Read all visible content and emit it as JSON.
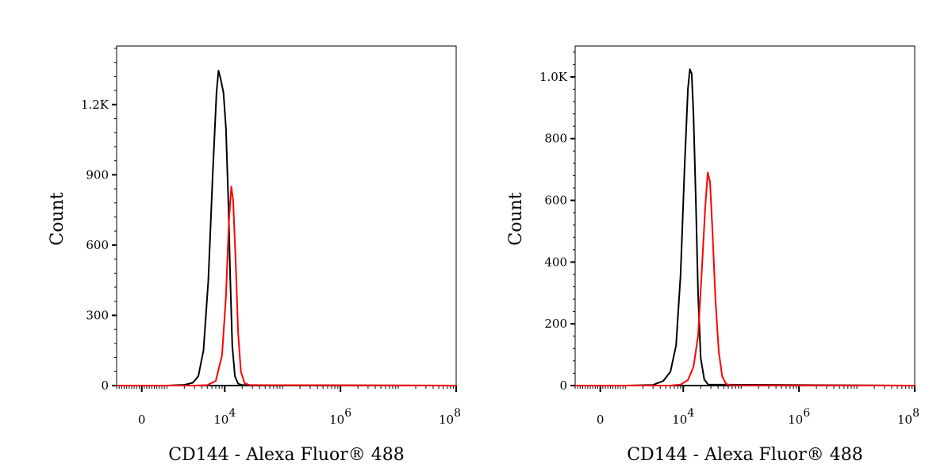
{
  "chart_data": [
    {
      "type": "line",
      "xlabel": "CD144 - Alexa Fluor® 488",
      "ylabel": "Count",
      "x_scale": "biexponential",
      "xlim": [
        -1000,
        100000000
      ],
      "ylim": [
        0,
        1450
      ],
      "x_ticks": [
        {
          "value": 0,
          "base": "0",
          "exp": ""
        },
        {
          "value": 10000,
          "base": "10",
          "exp": "4"
        },
        {
          "value": 1000000,
          "base": "10",
          "exp": "6"
        },
        {
          "value": 100000000,
          "base": "10",
          "exp": "8"
        }
      ],
      "y_ticks": [
        {
          "value": 0,
          "label": "0"
        },
        {
          "value": 300,
          "label": "300"
        },
        {
          "value": 600,
          "label": "600"
        },
        {
          "value": 900,
          "label": "900"
        },
        {
          "value": 1200,
          "label": "1.2K"
        }
      ],
      "grid": false,
      "series": [
        {
          "color": "#000000",
          "points": [
            [
              -1000,
              0
            ],
            [
              1000,
              0
            ],
            [
              2000,
              3
            ],
            [
              2800,
              12
            ],
            [
              3500,
              40
            ],
            [
              4300,
              150
            ],
            [
              5200,
              450
            ],
            [
              6200,
              900
            ],
            [
              7200,
              1250
            ],
            [
              7800,
              1345
            ],
            [
              8500,
              1310
            ],
            [
              9500,
              1250
            ],
            [
              10500,
              1100
            ],
            [
              11500,
              800
            ],
            [
              12500,
              450
            ],
            [
              13500,
              170
            ],
            [
              15000,
              40
            ],
            [
              17000,
              8
            ],
            [
              20000,
              2
            ],
            [
              100000000,
              0
            ]
          ]
        },
        {
          "color": "#ff0000",
          "points": [
            [
              -1000,
              0
            ],
            [
              1000,
              0
            ],
            [
              3000,
              0
            ],
            [
              5000,
              2
            ],
            [
              7000,
              20
            ],
            [
              9000,
              130
            ],
            [
              10500,
              380
            ],
            [
              11800,
              700
            ],
            [
              13000,
              850
            ],
            [
              14000,
              790
            ],
            [
              15500,
              520
            ],
            [
              17000,
              230
            ],
            [
              19000,
              60
            ],
            [
              22000,
              10
            ],
            [
              27000,
              2
            ],
            [
              100000000,
              0
            ]
          ]
        }
      ]
    },
    {
      "type": "line",
      "xlabel": "CD144 - Alexa Fluor® 488",
      "ylabel": "Count",
      "x_scale": "biexponential",
      "xlim": [
        -1000,
        100000000
      ],
      "ylim": [
        0,
        1100
      ],
      "x_ticks": [
        {
          "value": 0,
          "base": "0",
          "exp": ""
        },
        {
          "value": 10000,
          "base": "10",
          "exp": "4"
        },
        {
          "value": 1000000,
          "base": "10",
          "exp": "6"
        },
        {
          "value": 100000000,
          "base": "10",
          "exp": "8"
        }
      ],
      "y_ticks": [
        {
          "value": 0,
          "label": "0"
        },
        {
          "value": 200,
          "label": "200"
        },
        {
          "value": 400,
          "label": "400"
        },
        {
          "value": 600,
          "label": "600"
        },
        {
          "value": 800,
          "label": "800"
        },
        {
          "value": 1000,
          "label": "1.0K"
        }
      ],
      "grid": false,
      "series": [
        {
          "color": "#000000",
          "points": [
            [
              -1000,
              0
            ],
            [
              1000,
              0
            ],
            [
              3000,
              2
            ],
            [
              4500,
              15
            ],
            [
              6000,
              45
            ],
            [
              7500,
              130
            ],
            [
              9000,
              360
            ],
            [
              10500,
              700
            ],
            [
              12000,
              960
            ],
            [
              13000,
              1025
            ],
            [
              14000,
              1010
            ],
            [
              15000,
              880
            ],
            [
              16500,
              600
            ],
            [
              18000,
              300
            ],
            [
              20000,
              90
            ],
            [
              23000,
              20
            ],
            [
              27000,
              3
            ],
            [
              100000000,
              0
            ]
          ]
        },
        {
          "color": "#ff0000",
          "points": [
            [
              -1000,
              0
            ],
            [
              1000,
              0
            ],
            [
              6000,
              0
            ],
            [
              9000,
              3
            ],
            [
              12000,
              18
            ],
            [
              15000,
              60
            ],
            [
              18000,
              160
            ],
            [
              21000,
              380
            ],
            [
              24000,
              580
            ],
            [
              26500,
              690
            ],
            [
              29000,
              660
            ],
            [
              32000,
              500
            ],
            [
              36000,
              280
            ],
            [
              41000,
              110
            ],
            [
              47000,
              30
            ],
            [
              55000,
              5
            ],
            [
              65000,
              1
            ],
            [
              100000000,
              0
            ]
          ]
        }
      ]
    }
  ]
}
